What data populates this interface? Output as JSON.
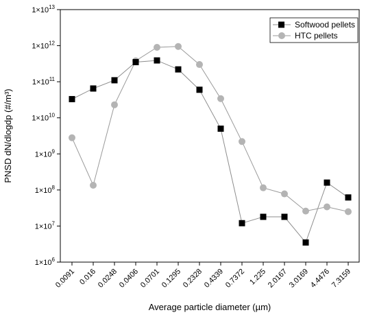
{
  "chart_data": {
    "type": "line",
    "xlabel": "Average particle diameter (µm)",
    "ylabel": "PNSD dN/dlogdp  (#/m³)",
    "yscale": "log",
    "ylim": [
      1000000,
      10000000000000
    ],
    "y_tick_labels": [
      {
        "value": 1000000,
        "base": "1×10",
        "exp": "6"
      },
      {
        "value": 10000000,
        "base": "1×10",
        "exp": "7"
      },
      {
        "value": 100000000,
        "base": "1×10",
        "exp": "8"
      },
      {
        "value": 1000000000,
        "base": "1×10",
        "exp": "9"
      },
      {
        "value": 10000000000,
        "base": "1×10",
        "exp": "10"
      },
      {
        "value": 100000000000,
        "base": "1×10",
        "exp": "11"
      },
      {
        "value": 1000000000000,
        "base": "1×10",
        "exp": "12"
      },
      {
        "value": 10000000000000,
        "base": "1×10",
        "exp": "13"
      }
    ],
    "categories": [
      "0.0091",
      "0.016",
      "0.0248",
      "0.0406",
      "0.0701",
      "0.1295",
      "0.2328",
      "0.4339",
      "0.7372",
      "1.225",
      "2.0167",
      "3.0169",
      "4.4476",
      "7.3159"
    ],
    "grid": false,
    "legend_position": "top-right",
    "series": [
      {
        "name": "Softwood pellets",
        "marker": "square",
        "color": "#000000",
        "line_color": "#8c8c8c",
        "values": [
          33000000000,
          65000000000,
          110000000000,
          350000000000,
          390000000000,
          220000000000,
          60000000000,
          5000000000,
          12000000,
          18000000,
          18000000,
          3500000,
          160000000,
          62000000
        ]
      },
      {
        "name": "HTC pellets",
        "marker": "circle",
        "color": "#b4b4b4",
        "line_color": "#9a9a9a",
        "values": [
          2800000000,
          135000000,
          23000000000,
          380000000000,
          900000000000,
          950000000000,
          300000000000,
          34000000000,
          2200000000,
          115000000,
          78000000,
          26000000,
          34000000,
          25000000
        ]
      }
    ]
  }
}
